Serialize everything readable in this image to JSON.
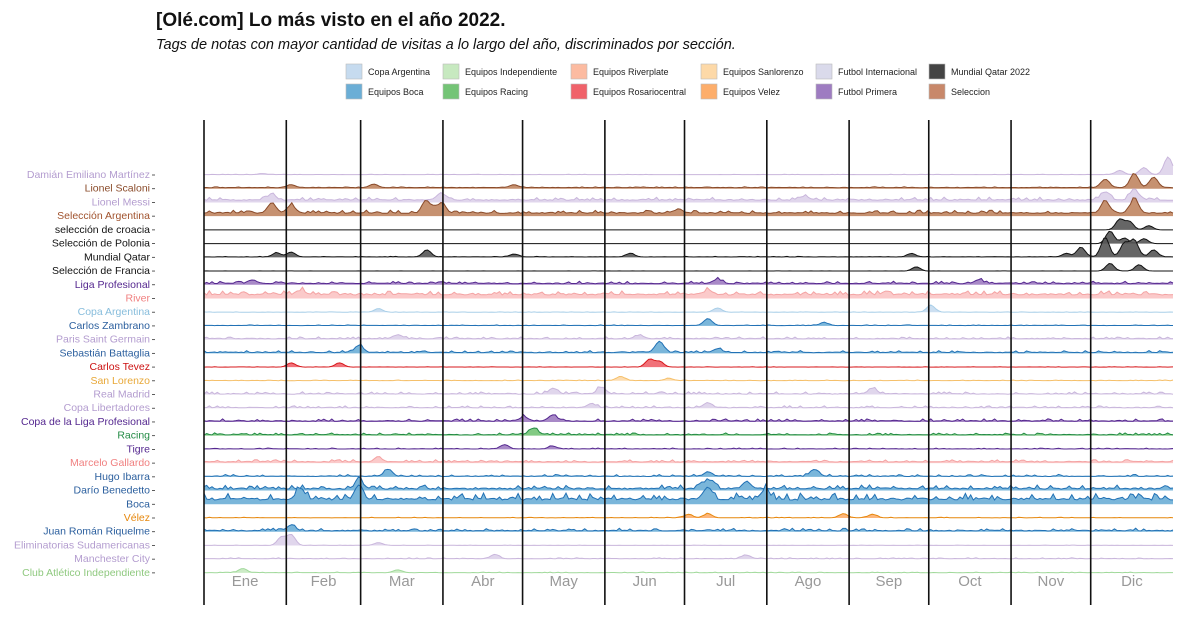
{
  "chart_data": {
    "type": "area",
    "title": "[Olé.com] Lo más visto en el año 2022.",
    "subtitle": "Tags de notas con mayor cantidad de visitas a lo largo del año, discriminados por sección.",
    "x_tick_labels": [
      "Ene",
      "Feb",
      "Mar",
      "Abr",
      "May",
      "Jun",
      "Jul",
      "Ago",
      "Sep",
      "Oct",
      "Nov",
      "Dic"
    ],
    "legend_position": "top",
    "legend": [
      {
        "label": "Copa Argentina",
        "color": "#c6dbef"
      },
      {
        "label": "Equipos Boca",
        "color": "#6baed6"
      },
      {
        "label": "Equipos Independiente",
        "color": "#c7e9c0"
      },
      {
        "label": "Equipos Racing",
        "color": "#74c476"
      },
      {
        "label": "Equipos Riverplate",
        "color": "#fcbba1"
      },
      {
        "label": "Equipos Rosariocentral",
        "color": "#f0626a"
      },
      {
        "label": "Equipos Sanlorenzo",
        "color": "#fdd9a8"
      },
      {
        "label": "Equipos Velez",
        "color": "#fdae6b"
      },
      {
        "label": "Futbol Internacional",
        "color": "#dadaeb"
      },
      {
        "label": "Futbol Primera",
        "color": "#9e7cc1"
      },
      {
        "label": "Mundial Qatar 2022",
        "color": "#444444"
      },
      {
        "label": "Seleccion",
        "color": "#c8886a"
      }
    ],
    "series": [
      {
        "name": "Damián Emiliano Martínez",
        "section": "Futbol Internacional",
        "line": "#c9b6dc",
        "fill": "#ddd2ea",
        "label_color": "#b39ccf",
        "base": 0.05,
        "noise": 0.05,
        "peaks": [
          [
            0.97,
            1.0
          ],
          [
            0.995,
            2.5
          ],
          [
            0.945,
            0.6
          ],
          [
            0.06,
            0.15
          ]
        ]
      },
      {
        "name": "Lionel Scaloni",
        "section": "Seleccion",
        "line": "#8a4b2a",
        "fill": "#c08560",
        "label_color": "#8a4b2a",
        "base": 0.15,
        "noise": 0.12,
        "peaks": [
          [
            0.09,
            0.4
          ],
          [
            0.175,
            0.5
          ],
          [
            0.32,
            0.4
          ],
          [
            0.93,
            1.2
          ],
          [
            0.96,
            2.0
          ],
          [
            0.98,
            1.5
          ]
        ]
      },
      {
        "name": "Lionel Messi",
        "section": "Futbol Internacional",
        "line": "#c9b6dc",
        "fill": "#ddd2ea",
        "label_color": "#b39ccf",
        "base": 0.3,
        "noise": 0.45,
        "peaks": [
          [
            0.07,
            0.8
          ],
          [
            0.245,
            1.0
          ],
          [
            0.62,
            0.6
          ],
          [
            0.93,
            1.2
          ],
          [
            0.96,
            1.6
          ]
        ]
      },
      {
        "name": "Selección Argentina",
        "section": "Seleccion",
        "line": "#8a4b2a",
        "fill": "#c08560",
        "label_color": "#a0522d",
        "base": 0.4,
        "noise": 0.45,
        "peaks": [
          [
            0.07,
            1.5
          ],
          [
            0.09,
            1.1
          ],
          [
            0.23,
            1.7
          ],
          [
            0.245,
            1.5
          ],
          [
            0.49,
            0.6
          ],
          [
            0.93,
            1.8
          ],
          [
            0.96,
            2.0
          ]
        ]
      },
      {
        "name": "selección de croacia",
        "section": "Mundial Qatar 2022",
        "line": "#111111",
        "fill": "#555555",
        "label_color": "#111111",
        "base": 0.0,
        "noise": 0.0,
        "peaks": [
          [
            0.945,
            1.5
          ],
          [
            0.955,
            1.2
          ],
          [
            0.975,
            0.6
          ]
        ]
      },
      {
        "name": "Selección de Polonia",
        "section": "Mundial Qatar 2022",
        "line": "#111111",
        "fill": "#555555",
        "label_color": "#111111",
        "base": 0.0,
        "noise": 0.0,
        "peaks": [
          [
            0.935,
            1.8
          ],
          [
            0.95,
            0.8
          ],
          [
            0.97,
            0.7
          ]
        ]
      },
      {
        "name": "Mundial Qatar",
        "section": "Mundial Qatar 2022",
        "line": "#111111",
        "fill": "#555555",
        "label_color": "#111111",
        "base": 0.05,
        "noise": 0.08,
        "peaks": [
          [
            0.075,
            0.6
          ],
          [
            0.09,
            0.7
          ],
          [
            0.23,
            1.0
          ],
          [
            0.32,
            0.4
          ],
          [
            0.44,
            0.5
          ],
          [
            0.73,
            0.5
          ],
          [
            0.89,
            0.5
          ],
          [
            0.905,
            1.4
          ],
          [
            0.93,
            2.8
          ],
          [
            0.95,
            2.0
          ],
          [
            0.96,
            2.4
          ],
          [
            0.98,
            1.0
          ]
        ]
      },
      {
        "name": "Selección de Francia",
        "section": "Mundial Qatar 2022",
        "line": "#111111",
        "fill": "#555555",
        "label_color": "#111111",
        "base": 0.0,
        "noise": 0.02,
        "peaks": [
          [
            0.735,
            0.6
          ],
          [
            0.935,
            1.1
          ],
          [
            0.965,
            0.9
          ]
        ]
      },
      {
        "name": "Liga Profesional",
        "section": "Futbol Primera",
        "line": "#54278f",
        "fill": "#9e7cc1",
        "label_color": "#54278f",
        "base": 0.15,
        "noise": 0.35,
        "peaks": [
          [
            0.05,
            0.5
          ],
          [
            0.53,
            0.6
          ],
          [
            0.8,
            0.5
          ]
        ]
      },
      {
        "name": "River",
        "section": "Equipos Riverplate",
        "line": "#f4a3a3",
        "fill": "#fbc4c4",
        "label_color": "#f08080",
        "base": 0.5,
        "noise": 0.6,
        "peaks": [
          [
            0.1,
            0.6
          ],
          [
            0.52,
            0.6
          ]
        ]
      },
      {
        "name": "Copa Argentina",
        "section": "Copa Argentina",
        "line": "#a9cfe8",
        "fill": "#c6dbef",
        "label_color": "#87bddc",
        "base": 0.0,
        "noise": 0.05,
        "peaks": [
          [
            0.18,
            0.5
          ],
          [
            0.53,
            0.6
          ],
          [
            0.75,
            1.0
          ]
        ]
      },
      {
        "name": "Carlos Zambrano",
        "section": "Equipos Boca",
        "line": "#2171b5",
        "fill": "#6baed6",
        "label_color": "#2b5f9e",
        "base": 0.05,
        "noise": 0.1,
        "peaks": [
          [
            0.52,
            1.0
          ],
          [
            0.64,
            0.4
          ]
        ]
      },
      {
        "name": "Paris Saint Germain",
        "section": "Futbol Internacional",
        "line": "#c9b6dc",
        "fill": "#ddd2ea",
        "label_color": "#b39ccf",
        "base": 0.1,
        "noise": 0.3,
        "peaks": [
          [
            0.2,
            0.6
          ],
          [
            0.45,
            0.5
          ]
        ]
      },
      {
        "name": "Sebastián Battaglia",
        "section": "Equipos Boca",
        "line": "#2171b5",
        "fill": "#6baed6",
        "label_color": "#2b5f9e",
        "base": 0.1,
        "noise": 0.3,
        "peaks": [
          [
            0.16,
            1.0
          ],
          [
            0.47,
            1.6
          ],
          [
            0.53,
            0.5
          ]
        ]
      },
      {
        "name": "Carlos Tevez",
        "section": "Equipos Rosariocentral",
        "line": "#d7191c",
        "fill": "#f0626a",
        "label_color": "#cc1111",
        "base": 0.0,
        "noise": 0.04,
        "peaks": [
          [
            0.09,
            0.6
          ],
          [
            0.14,
            0.6
          ],
          [
            0.46,
            1.1
          ],
          [
            0.47,
            0.8
          ]
        ]
      },
      {
        "name": "San Lorenzo",
        "section": "Equipos Sanlorenzo",
        "line": "#f5c06b",
        "fill": "#fdd9a8",
        "label_color": "#e8a838",
        "base": 0.02,
        "noise": 0.1,
        "peaks": [
          [
            0.43,
            0.6
          ],
          [
            0.48,
            0.3
          ]
        ]
      },
      {
        "name": "Real Madrid",
        "section": "Futbol Internacional",
        "line": "#c9b6dc",
        "fill": "#ddd2ea",
        "label_color": "#b39ccf",
        "base": 0.05,
        "noise": 0.35,
        "peaks": [
          [
            0.36,
            0.8
          ],
          [
            0.41,
            1.0
          ],
          [
            0.69,
            0.8
          ]
        ]
      },
      {
        "name": "Copa Libertadores",
        "section": "Futbol Internacional",
        "line": "#c9b6dc",
        "fill": "#ddd2ea",
        "label_color": "#b39ccf",
        "base": 0.05,
        "noise": 0.3,
        "peaks": [
          [
            0.4,
            0.6
          ],
          [
            0.52,
            0.7
          ]
        ]
      },
      {
        "name": "Copa de la Liga Profesional",
        "section": "Futbol Primera",
        "line": "#54278f",
        "fill": "#9e7cc1",
        "label_color": "#54278f",
        "base": 0.1,
        "noise": 0.35,
        "peaks": [
          [
            0.33,
            0.6
          ],
          [
            0.36,
            0.9
          ]
        ]
      },
      {
        "name": "Racing",
        "section": "Equipos Racing",
        "line": "#238b45",
        "fill": "#74c476",
        "label_color": "#238b45",
        "base": 0.1,
        "noise": 0.3,
        "peaks": [
          [
            0.34,
            1.0
          ]
        ]
      },
      {
        "name": "Tigre",
        "section": "Futbol Primera",
        "line": "#54278f",
        "fill": "#9e7cc1",
        "label_color": "#54278f",
        "base": 0.05,
        "noise": 0.15,
        "peaks": [
          [
            0.31,
            0.6
          ],
          [
            0.36,
            0.4
          ]
        ]
      },
      {
        "name": "Marcelo Gallardo",
        "section": "Equipos Riverplate",
        "line": "#f4a3a3",
        "fill": "#fbc4c4",
        "label_color": "#f08080",
        "base": 0.15,
        "noise": 0.35,
        "peaks": [
          [
            0.18,
            0.5
          ]
        ]
      },
      {
        "name": "Hugo Ibarra",
        "section": "Equipos Boca",
        "line": "#2171b5",
        "fill": "#6baed6",
        "label_color": "#2b5f9e",
        "base": 0.05,
        "noise": 0.3,
        "peaks": [
          [
            0.19,
            1.0
          ],
          [
            0.52,
            0.6
          ],
          [
            0.63,
            1.0
          ]
        ]
      },
      {
        "name": "Darío Benedetto",
        "section": "Equipos Boca",
        "line": "#2171b5",
        "fill": "#6baed6",
        "label_color": "#2b5f9e",
        "base": 0.2,
        "noise": 0.6,
        "peaks": [
          [
            0.16,
            1.2
          ],
          [
            0.52,
            1.4
          ],
          [
            0.56,
            1.0
          ]
        ]
      },
      {
        "name": "Boca",
        "section": "Equipos Boca",
        "line": "#2171b5",
        "fill": "#6baed6",
        "label_color": "#2b5f9e",
        "base": 0.6,
        "noise": 1.0,
        "peaks": [
          [
            0.1,
            1.5
          ],
          [
            0.16,
            2.0
          ],
          [
            0.52,
            1.8
          ],
          [
            0.58,
            1.4
          ]
        ]
      },
      {
        "name": "Vélez",
        "section": "Equipos Velez",
        "line": "#e6870c",
        "fill": "#fdae6b",
        "label_color": "#e6870c",
        "base": 0.02,
        "noise": 0.08,
        "peaks": [
          [
            0.5,
            0.5
          ],
          [
            0.52,
            0.6
          ],
          [
            0.66,
            0.6
          ],
          [
            0.69,
            0.5
          ]
        ]
      },
      {
        "name": "Juan Román Riquelme",
        "section": "Equipos Boca",
        "line": "#2171b5",
        "fill": "#6baed6",
        "label_color": "#2b5f9e",
        "base": 0.1,
        "noise": 0.4,
        "peaks": [
          [
            0.09,
            0.8
          ]
        ]
      },
      {
        "name": "Eliminatorias Sudamericanas",
        "section": "Futbol Internacional",
        "line": "#c9b6dc",
        "fill": "#ddd2ea",
        "label_color": "#b39ccf",
        "base": 0.0,
        "noise": 0.05,
        "peaks": [
          [
            0.08,
            1.2
          ],
          [
            0.09,
            1.5
          ],
          [
            0.18,
            0.4
          ]
        ]
      },
      {
        "name": "Manchester City",
        "section": "Futbol Internacional",
        "line": "#c9b6dc",
        "fill": "#ddd2ea",
        "label_color": "#b39ccf",
        "base": 0.05,
        "noise": 0.15,
        "peaks": [
          [
            0.3,
            0.6
          ],
          [
            0.56,
            0.5
          ]
        ]
      },
      {
        "name": "Club Atlético Independiente",
        "section": "Equipos Independiente",
        "line": "#a1d99b",
        "fill": "#c7e9c0",
        "label_color": "#8fc97f",
        "base": 0.02,
        "noise": 0.1,
        "peaks": [
          [
            0.04,
            0.6
          ],
          [
            0.2,
            0.4
          ]
        ]
      }
    ]
  }
}
